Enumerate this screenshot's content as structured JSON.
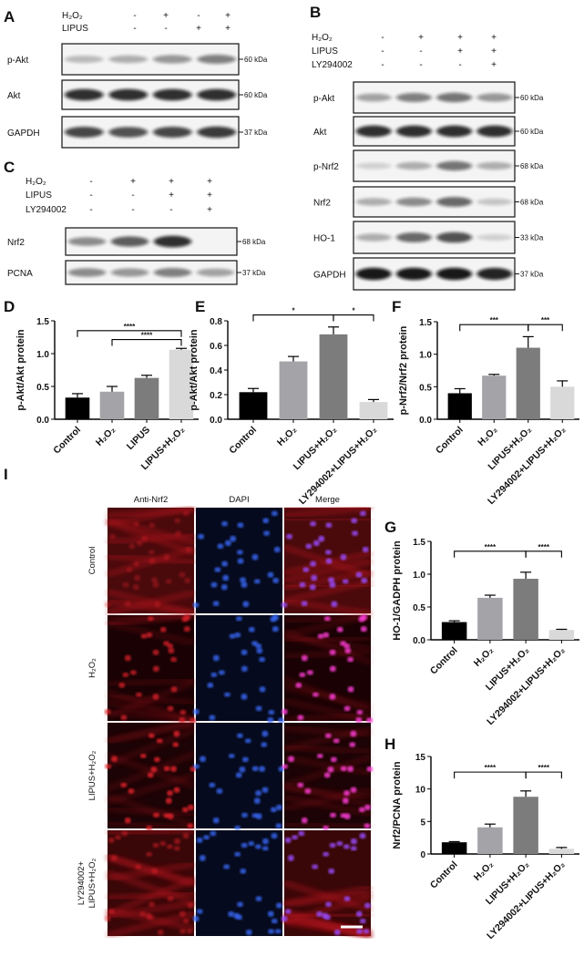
{
  "panels": {
    "A": {
      "letter": "A",
      "conditions": [
        {
          "label": "H₂O₂",
          "signs": [
            "-",
            "+",
            "-",
            "+"
          ]
        },
        {
          "label": "LIPUS",
          "signs": [
            "-",
            "-",
            "+",
            "+"
          ]
        }
      ],
      "blots": [
        {
          "name": "p-Akt",
          "kda": "60 kDa",
          "band_intensity": [
            0.25,
            0.3,
            0.4,
            0.5
          ]
        },
        {
          "name": "Akt",
          "kda": "60 kDa",
          "band_intensity": [
            0.85,
            0.85,
            0.85,
            0.85
          ]
        },
        {
          "name": "GAPDH",
          "kda": "37 kDa",
          "band_intensity": [
            0.75,
            0.7,
            0.75,
            0.8
          ]
        }
      ]
    },
    "B": {
      "letter": "B",
      "conditions": [
        {
          "label": "H₂O₂",
          "signs": [
            "-",
            "+",
            "+",
            "+"
          ]
        },
        {
          "label": "LIPUS",
          "signs": [
            "-",
            "-",
            "+",
            "+"
          ]
        },
        {
          "label": "LY294002",
          "signs": [
            "-",
            "-",
            "-",
            "+"
          ]
        }
      ],
      "blots": [
        {
          "name": "p-Akt",
          "kda": "60 kDa",
          "band_intensity": [
            0.35,
            0.5,
            0.55,
            0.4
          ]
        },
        {
          "name": "Akt",
          "kda": "60 kDa",
          "band_intensity": [
            0.85,
            0.85,
            0.85,
            0.85
          ]
        },
        {
          "name": "p-Nrf2",
          "kda": "68 kDa",
          "band_intensity": [
            0.15,
            0.3,
            0.55,
            0.3
          ]
        },
        {
          "name": "Nrf2",
          "kda": "68 kDa",
          "band_intensity": [
            0.3,
            0.45,
            0.6,
            0.2
          ]
        },
        {
          "name": "HO-1",
          "kda": "33 kDa",
          "band_intensity": [
            0.3,
            0.6,
            0.7,
            0.15
          ]
        },
        {
          "name": "GAPDH",
          "kda": "37 kDa",
          "band_intensity": [
            0.95,
            0.95,
            0.95,
            0.9
          ]
        }
      ]
    },
    "C": {
      "letter": "C",
      "conditions": [
        {
          "label": "H₂O₂",
          "signs": [
            "-",
            "+",
            "+",
            "+"
          ]
        },
        {
          "label": "LIPUS",
          "signs": [
            "-",
            "-",
            "+",
            "+"
          ]
        },
        {
          "label": "LY294002",
          "signs": [
            "-",
            "-",
            "-",
            "+"
          ]
        }
      ],
      "blots": [
        {
          "name": "Nrf2",
          "kda": "68 kDa",
          "band_intensity": [
            0.45,
            0.65,
            0.85,
            0.0
          ]
        },
        {
          "name": "PCNA",
          "kda": "37 kDa",
          "band_intensity": [
            0.45,
            0.4,
            0.5,
            0.35
          ]
        }
      ]
    },
    "I": {
      "letter": "I",
      "columns": [
        "Anti-Nrf2",
        "DAPI",
        "Merge"
      ],
      "rows": [
        {
          "label": [
            "Control"
          ]
        },
        {
          "label": [
            "H₂O₂"
          ]
        },
        {
          "label": [
            "LIPUS+H₂O₂"
          ]
        },
        {
          "label": [
            "LY294002+",
            "LIPUS+H₂O₂"
          ]
        }
      ]
    }
  },
  "colors": {
    "control": "#000000",
    "h2o2": "#a3a3a8",
    "lipus_h2o2": "#7c7c7c",
    "ly": "#d9d9d9",
    "lipus_only": "#7c7c7c",
    "lipus_h2o2_D": "#d9d9d9"
  },
  "chart_data": [
    {
      "letter": "D",
      "type": "bar",
      "categories": [
        "Control",
        "H₂O₂",
        "LIPUS",
        "LIPUS+H₂O₂"
      ],
      "values": [
        0.33,
        0.42,
        0.63,
        1.06
      ],
      "errors": [
        0.06,
        0.08,
        0.04,
        0.02
      ],
      "colors": [
        "#000000",
        "#a3a3a8",
        "#7c7c7c",
        "#d9d9d9"
      ],
      "ylabel": "p-Akt/Akt  protein",
      "ylim": [
        0,
        1.5
      ],
      "yticks": [
        "0.0",
        "0.5",
        "1.0",
        "1.5"
      ],
      "significance": [
        {
          "from": 0,
          "to": 3,
          "label": "****"
        },
        {
          "from": 1,
          "to": 3,
          "label": "****"
        }
      ]
    },
    {
      "letter": "E",
      "type": "bar",
      "categories": [
        "Control",
        "H₂O₂",
        "LIPUS+H₂O₂",
        "LY294002+LIPUS+H₂O₂"
      ],
      "values": [
        0.22,
        0.47,
        0.69,
        0.14
      ],
      "errors": [
        0.03,
        0.04,
        0.06,
        0.02
      ],
      "colors": [
        "#000000",
        "#a3a3a8",
        "#7c7c7c",
        "#d9d9d9"
      ],
      "ylabel": "p-Akt/Akt  protein",
      "ylim": [
        0,
        0.8
      ],
      "yticks": [
        "0.0",
        "0.2",
        "0.4",
        "0.6",
        "0.8"
      ],
      "significance": [
        {
          "from": 0,
          "to": 2,
          "label": "*"
        },
        {
          "from": 2,
          "to": 3,
          "label": "*"
        }
      ]
    },
    {
      "letter": "F",
      "type": "bar",
      "categories": [
        "Control",
        "H₂O₂",
        "LIPUS+H₂O₂",
        "LY294002+LIPUS+H₂O₂"
      ],
      "values": [
        0.4,
        0.67,
        1.1,
        0.5
      ],
      "errors": [
        0.07,
        0.02,
        0.17,
        0.09
      ],
      "colors": [
        "#000000",
        "#a3a3a8",
        "#7c7c7c",
        "#d9d9d9"
      ],
      "ylabel": "p-Nrf2/Nrf2 protein",
      "ylim": [
        0,
        1.5
      ],
      "yticks": [
        "0.0",
        "0.5",
        "1.0",
        "1.5"
      ],
      "significance": [
        {
          "from": 0,
          "to": 2,
          "label": "***"
        },
        {
          "from": 2,
          "to": 3,
          "label": "***"
        }
      ]
    },
    {
      "letter": "G",
      "type": "bar",
      "categories": [
        "Control",
        "H₂O₂",
        "LIPUS+H₂O₂",
        "LY294002+LIPUS+H₂O₂"
      ],
      "values": [
        0.27,
        0.64,
        0.93,
        0.15
      ],
      "errors": [
        0.02,
        0.04,
        0.1,
        0.01
      ],
      "colors": [
        "#000000",
        "#a3a3a8",
        "#7c7c7c",
        "#d9d9d9"
      ],
      "ylabel": "HO-1/GADPH protein",
      "ylim": [
        0,
        1.5
      ],
      "yticks": [
        "0.0",
        "0.5",
        "1.0",
        "1.5"
      ],
      "significance": [
        {
          "from": 0,
          "to": 2,
          "label": "****"
        },
        {
          "from": 2,
          "to": 3,
          "label": "****"
        }
      ]
    },
    {
      "letter": "H",
      "type": "bar",
      "categories": [
        "Control",
        "H₂O₂",
        "LIPUS+H₂O₂",
        "LY294002+LIPUS+H₂O₂"
      ],
      "values": [
        1.8,
        4.1,
        8.8,
        0.8
      ],
      "errors": [
        0.1,
        0.5,
        0.9,
        0.2
      ],
      "colors": [
        "#000000",
        "#a3a3a8",
        "#7c7c7c",
        "#d9d9d9"
      ],
      "ylabel": "Nrf2/PCNA  protein",
      "ylim": [
        0,
        15
      ],
      "yticks": [
        "0",
        "5",
        "10",
        "15"
      ],
      "significance": [
        {
          "from": 0,
          "to": 2,
          "label": "****"
        },
        {
          "from": 2,
          "to": 3,
          "label": "****"
        }
      ]
    }
  ]
}
